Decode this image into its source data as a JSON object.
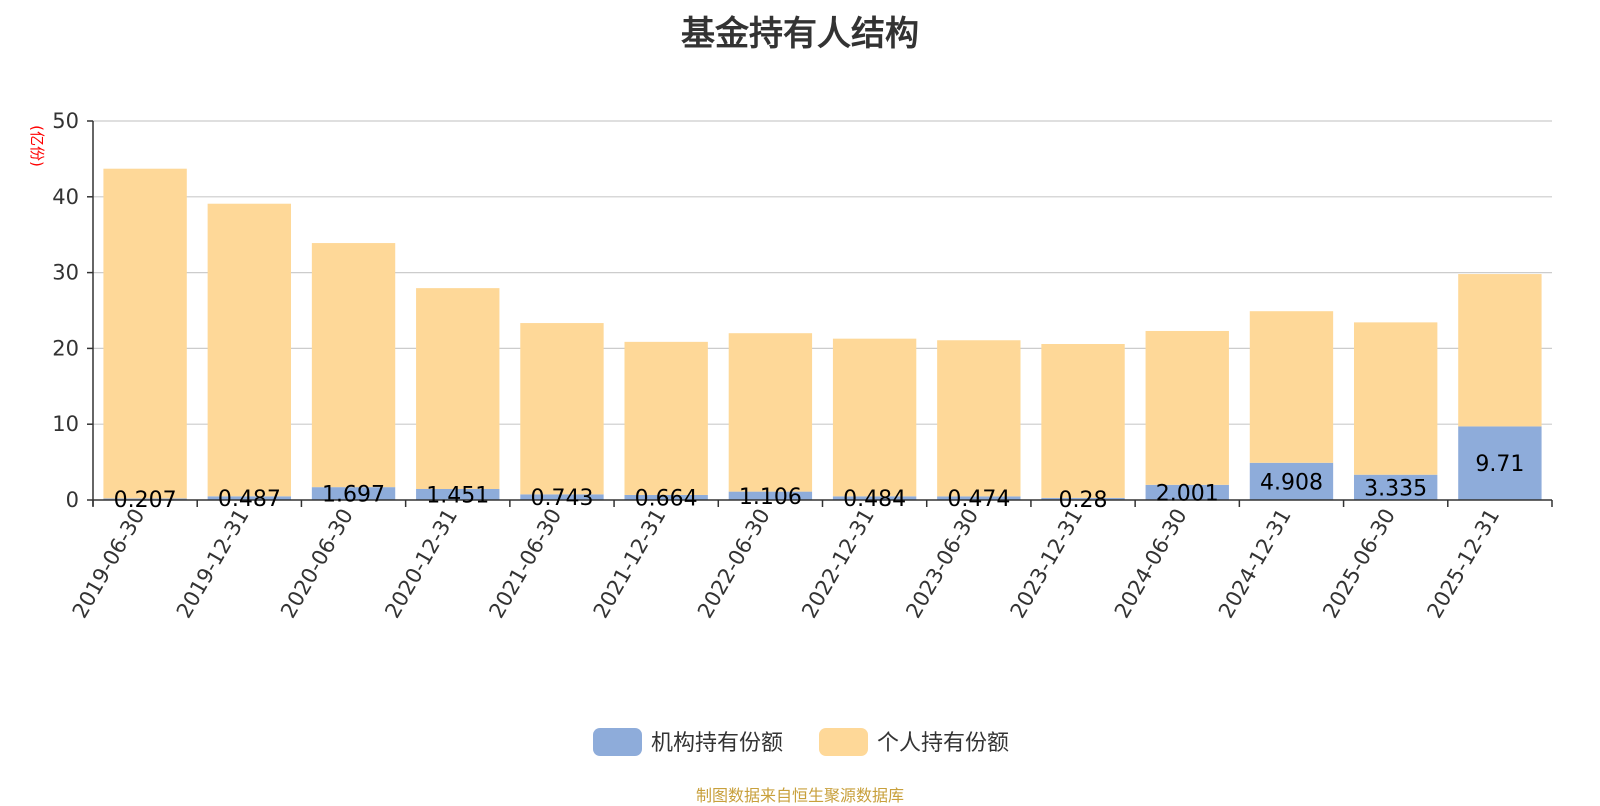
{
  "colors": {
    "institutional": "#8eacda",
    "individual": "#fed898",
    "axis": "#333333",
    "grid": "#cccccc",
    "unit": "#ff0000",
    "footer": "#c8a03c"
  },
  "footer": "制图数据来自恒生聚源数据库",
  "chart_data": {
    "type": "bar",
    "stacked": true,
    "title": "基金持有人结构",
    "ylabel": "(亿份)",
    "ylim": [
      0,
      50
    ],
    "yticks": [
      0,
      10,
      20,
      30,
      40,
      50
    ],
    "grid": true,
    "legend_position": "bottom-center",
    "categories": [
      "2019-06-30",
      "2019-12-31",
      "2020-06-30",
      "2020-12-31",
      "2021-06-30",
      "2021-12-31",
      "2022-06-30",
      "2022-12-31",
      "2023-06-30",
      "2023-12-31",
      "2024-06-30",
      "2024-12-31",
      "2025-06-30",
      "2025-12-31"
    ],
    "series": [
      {
        "name": "机构持有份额",
        "values": [
          0.207,
          0.487,
          1.697,
          1.451,
          0.743,
          0.664,
          1.106,
          0.484,
          0.474,
          0.28,
          2.001,
          4.908,
          3.335,
          9.71
        ],
        "labels": [
          "0.207",
          "0.487",
          "1.697",
          "1.451",
          "0.743",
          "0.664",
          "1.106",
          "0.484",
          "0.474",
          "0.28",
          "2.001",
          "4.908",
          "3.335",
          "9.71"
        ]
      },
      {
        "name": "个人持有份额",
        "values": [
          43.5,
          38.6,
          32.2,
          26.5,
          22.6,
          20.2,
          20.9,
          20.8,
          20.6,
          20.3,
          20.3,
          20.0,
          20.1,
          20.1
        ]
      }
    ]
  }
}
